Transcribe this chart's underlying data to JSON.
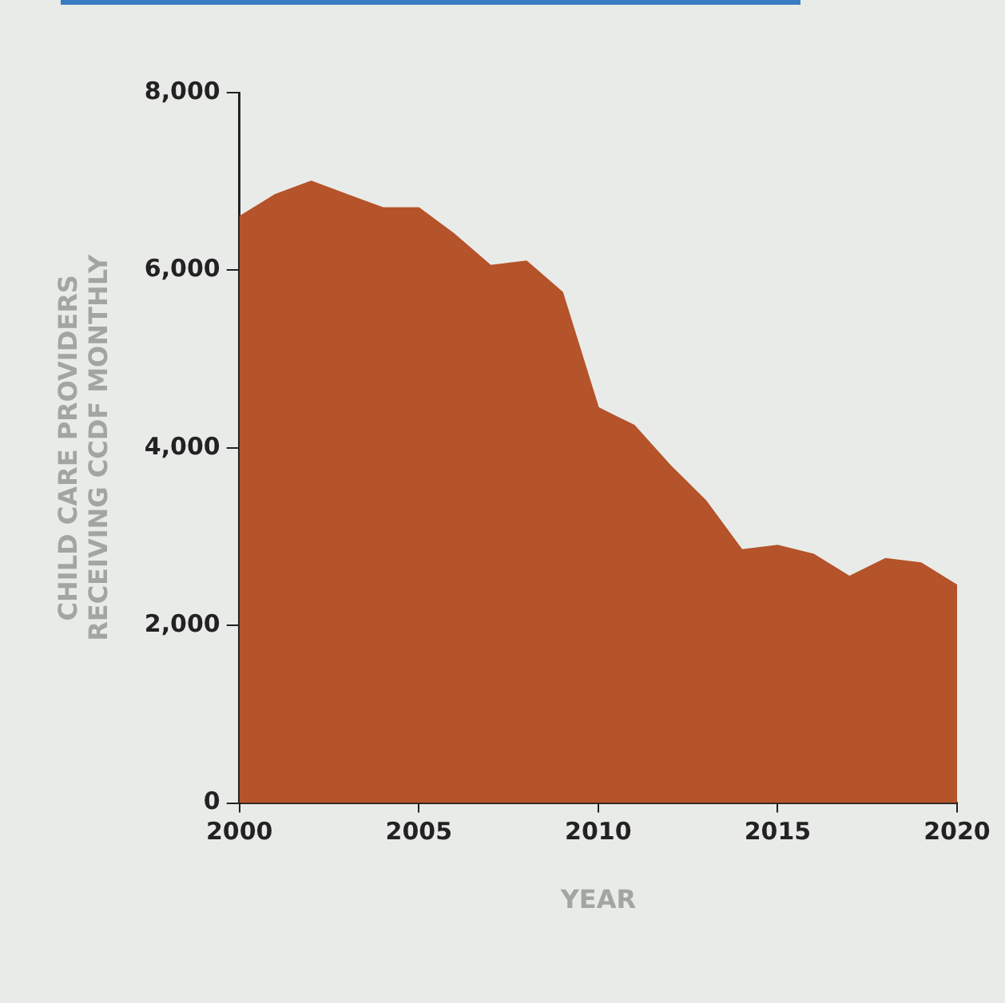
{
  "chart_data": {
    "type": "area",
    "xlabel": "YEAR",
    "ylabel": "CHILD CARE PROVIDERS\nRECEIVING CCDF MONTHLY",
    "x": [
      2000,
      2001,
      2002,
      2003,
      2004,
      2005,
      2006,
      2007,
      2008,
      2009,
      2010,
      2011,
      2012,
      2013,
      2014,
      2015,
      2016,
      2017,
      2018,
      2019,
      2020
    ],
    "series": [
      {
        "color": "#b5532a",
        "values": [
          6600,
          6850,
          7000,
          6850,
          6700,
          6700,
          6400,
          6050,
          6100,
          5750,
          4450,
          4250,
          3800,
          3400,
          2850,
          2900,
          2800,
          2550,
          2750,
          2700,
          2450
        ]
      }
    ],
    "xlim": [
      2000,
      2020
    ],
    "xticks": [
      2000,
      2005,
      2010,
      2015,
      2020
    ],
    "ylim": [
      0,
      8000
    ],
    "yticks": [
      {
        "value": 0,
        "label": "0"
      },
      {
        "value": 2000,
        "label": "2,000"
      },
      {
        "value": 4000,
        "label": "4,000"
      },
      {
        "value": 6000,
        "label": "6,000"
      },
      {
        "value": 8000,
        "label": "8,000"
      }
    ],
    "grid": false,
    "legend": false,
    "marker": "none"
  }
}
